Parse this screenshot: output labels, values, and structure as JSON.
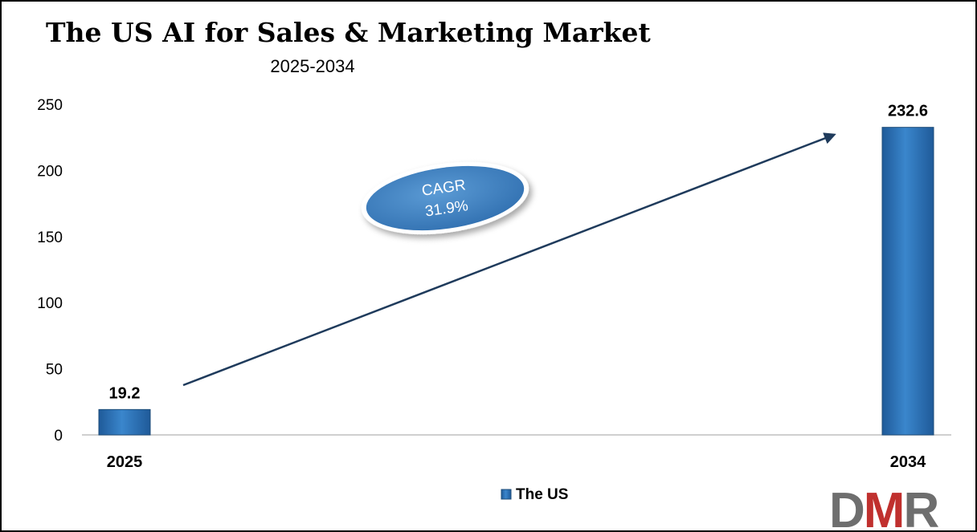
{
  "chart_data": {
    "type": "bar",
    "title": "The US AI for Sales & Marketing Market",
    "subtitle": "2025-2034",
    "categories": [
      "2025",
      "2034"
    ],
    "series": [
      {
        "name": "The US",
        "values": [
          19.2,
          232.6
        ],
        "labels": [
          "19.2",
          "232.6"
        ]
      }
    ],
    "ylim": [
      0,
      250
    ],
    "yticks": [
      0,
      50,
      100,
      150,
      200,
      250
    ],
    "xlabel": "",
    "ylabel": "",
    "grid": false,
    "legend": "bottom",
    "annotation": {
      "line1": "CAGR",
      "line2": "31.9%"
    },
    "colors": {
      "bar": "#2E75B6",
      "bar_dark": "#1F4E79",
      "arrow": "#1F3B5C",
      "ellipse": "#3A7FC0"
    }
  },
  "logo": {
    "text": "DMR",
    "colors": {
      "d": "#6E6E6E",
      "m": "#C0302E",
      "r": "#6E6E6E"
    }
  }
}
